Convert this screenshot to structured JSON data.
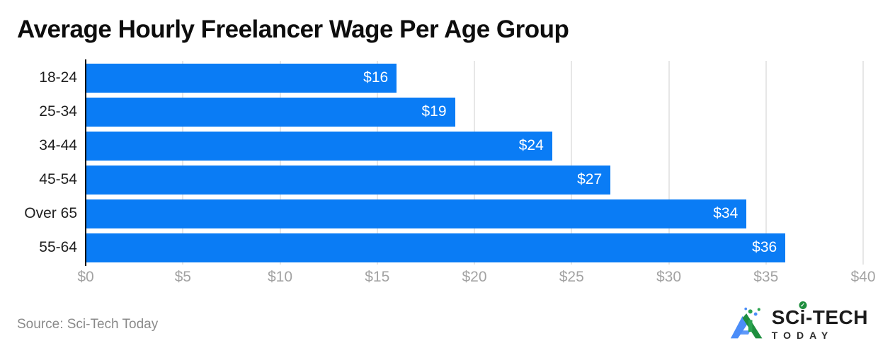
{
  "title": "Average Hourly Freelancer Wage Per Age Group",
  "source": "Source: Sci-Tech Today",
  "logo": {
    "part1": "SC",
    "part2": "i",
    "part3": "-TECH",
    "line2": "TODAY",
    "check_glyph": "✓",
    "brand_green": "#1e8e3e",
    "brand_blue": "#4b8df8"
  },
  "chart_data": {
    "type": "bar",
    "orientation": "horizontal",
    "title": "Average Hourly Freelancer Wage Per Age Group",
    "categories": [
      "18-24",
      "25-34",
      "34-44",
      "45-54",
      "Over 65",
      "55-64"
    ],
    "values": [
      16,
      19,
      24,
      27,
      34,
      36
    ],
    "value_labels": [
      "$16",
      "$19",
      "$24",
      "$27",
      "$34",
      "$36"
    ],
    "x_tick_values": [
      0,
      5,
      10,
      15,
      20,
      25,
      30,
      35,
      40
    ],
    "x_tick_labels": [
      "$0",
      "$5",
      "$10",
      "$15",
      "$20",
      "$25",
      "$30",
      "$35",
      "$40"
    ],
    "xlim": [
      0,
      40
    ],
    "xlabel": "",
    "ylabel": "",
    "grid": true,
    "legend": false,
    "bar_color": "#0a7cf5",
    "value_label_color": "#ffffff",
    "gridline_color": "#e7e7e7",
    "axis_line_color": "#0b0b0b",
    "tick_label_color": "#a3a3a3"
  }
}
